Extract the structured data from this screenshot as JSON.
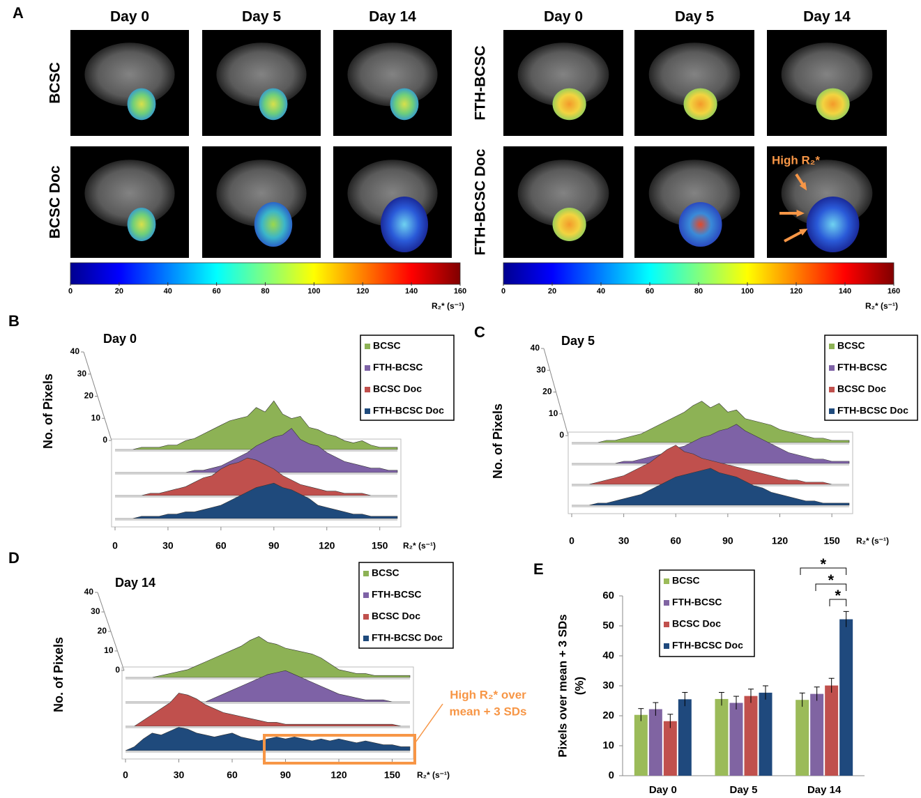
{
  "panel_a": {
    "label": "A",
    "groups": [
      {
        "columns": [
          "Day 0",
          "Day 5",
          "Day 14"
        ],
        "rows": [
          "BCSC",
          "BCSC Doc"
        ],
        "colorbar": {
          "ticks": [
            0,
            20,
            40,
            60,
            80,
            100,
            120,
            140,
            160
          ],
          "label": "R₂* (s⁻¹)"
        }
      },
      {
        "columns": [
          "Day 0",
          "Day 5",
          "Day 14"
        ],
        "rows": [
          "FTH-BCSC",
          "FTH-BCSC Doc"
        ],
        "colorbar": {
          "ticks": [
            0,
            20,
            40,
            60,
            80,
            100,
            120,
            140,
            160
          ],
          "label": "R₂* (s⁻¹)"
        }
      }
    ],
    "annotation": "High R₂*"
  },
  "chart_data": [
    {
      "type": "area3d",
      "panel": "B",
      "title": "Day 0",
      "y_label": "No. of Pixels",
      "x_label": "R₂* (s⁻¹)",
      "x": [
        0,
        5,
        10,
        15,
        20,
        25,
        30,
        35,
        40,
        45,
        50,
        55,
        60,
        65,
        70,
        75,
        80,
        85,
        90,
        95,
        100,
        105,
        110,
        115,
        120,
        125,
        130,
        135,
        140,
        145,
        150,
        155,
        160
      ],
      "xlim": [
        0,
        160
      ],
      "xticks": [
        0,
        30,
        60,
        90,
        120,
        150
      ],
      "ylim": [
        0,
        40
      ],
      "yticks": [
        0,
        10,
        20,
        30,
        40
      ],
      "series": [
        {
          "name": "BCSC",
          "color": "#8db255",
          "values": [
            0,
            0,
            0,
            1,
            1,
            1,
            2,
            2,
            4,
            5,
            7,
            9,
            11,
            13,
            14,
            15,
            19,
            17,
            22,
            16,
            14,
            15,
            10,
            9,
            7,
            6,
            4,
            3,
            4,
            2,
            1,
            1,
            1
          ]
        },
        {
          "name": "FTH-BCSC",
          "color": "#7e62a6",
          "values": [
            0,
            0,
            0,
            0,
            0,
            0,
            0,
            0,
            0,
            1,
            1,
            2,
            3,
            5,
            7,
            9,
            12,
            14,
            16,
            17,
            20,
            15,
            13,
            12,
            9,
            7,
            5,
            4,
            3,
            2,
            2,
            1,
            1
          ]
        },
        {
          "name": "BCSC Doc",
          "color": "#c0504d",
          "values": [
            0,
            0,
            0,
            0,
            1,
            1,
            2,
            3,
            4,
            6,
            8,
            9,
            12,
            14,
            15,
            17,
            16,
            14,
            12,
            9,
            7,
            5,
            4,
            3,
            2,
            2,
            1,
            1,
            1,
            0,
            0,
            0,
            0
          ]
        },
        {
          "name": "FTH-BCSC Doc",
          "color": "#1f4a7c",
          "values": [
            0,
            0,
            0,
            1,
            1,
            1,
            2,
            2,
            3,
            3,
            4,
            5,
            6,
            8,
            10,
            12,
            14,
            15,
            16,
            14,
            13,
            11,
            9,
            6,
            5,
            4,
            3,
            2,
            2,
            1,
            1,
            1,
            1
          ]
        }
      ]
    },
    {
      "type": "area3d",
      "panel": "C",
      "title": "Day 5",
      "y_label": "No. of Pixels",
      "x_label": "R₂* (s⁻¹)",
      "x": [
        0,
        5,
        10,
        15,
        20,
        25,
        30,
        35,
        40,
        45,
        50,
        55,
        60,
        65,
        70,
        75,
        80,
        85,
        90,
        95,
        100,
        105,
        110,
        115,
        120,
        125,
        130,
        135,
        140,
        145,
        150,
        155,
        160
      ],
      "xlim": [
        0,
        160
      ],
      "xticks": [
        0,
        30,
        60,
        90,
        120,
        150
      ],
      "ylim": [
        0,
        40
      ],
      "yticks": [
        0,
        10,
        20,
        30,
        40
      ],
      "series": [
        {
          "name": "BCSC",
          "color": "#8db255",
          "values": [
            0,
            0,
            0,
            0,
            1,
            1,
            2,
            3,
            4,
            6,
            8,
            10,
            12,
            14,
            17,
            19,
            16,
            18,
            14,
            15,
            11,
            10,
            9,
            8,
            6,
            5,
            4,
            3,
            2,
            2,
            1,
            1,
            1
          ]
        },
        {
          "name": "FTH-BCSC",
          "color": "#7e62a6",
          "values": [
            0,
            0,
            0,
            0,
            0,
            0,
            1,
            1,
            2,
            3,
            4,
            5,
            7,
            8,
            10,
            12,
            13,
            15,
            16,
            18,
            15,
            13,
            11,
            9,
            7,
            5,
            4,
            3,
            2,
            2,
            1,
            1,
            1
          ]
        },
        {
          "name": "BCSC Doc",
          "color": "#c0504d",
          "values": [
            0,
            0,
            0,
            1,
            2,
            3,
            4,
            6,
            8,
            10,
            13,
            16,
            18,
            15,
            14,
            12,
            11,
            10,
            9,
            8,
            7,
            6,
            5,
            4,
            3,
            2,
            2,
            1,
            1,
            1,
            0,
            0,
            0
          ]
        },
        {
          "name": "FTH-BCSC Doc",
          "color": "#1f4a7c",
          "values": [
            0,
            0,
            0,
            1,
            1,
            2,
            3,
            4,
            5,
            7,
            9,
            11,
            13,
            14,
            15,
            16,
            17,
            15,
            14,
            13,
            11,
            9,
            8,
            6,
            5,
            4,
            3,
            2,
            2,
            1,
            1,
            1,
            1
          ]
        }
      ]
    },
    {
      "type": "area3d",
      "panel": "D",
      "title": "Day 14",
      "y_label": "No. of Pixels",
      "x_label": "R₂* (s⁻¹)",
      "x": [
        0,
        5,
        10,
        15,
        20,
        25,
        30,
        35,
        40,
        45,
        50,
        55,
        60,
        65,
        70,
        75,
        80,
        85,
        90,
        95,
        100,
        105,
        110,
        115,
        120,
        125,
        130,
        135,
        140,
        145,
        150,
        155,
        160
      ],
      "xlim": [
        0,
        160
      ],
      "xticks": [
        0,
        30,
        60,
        90,
        120,
        150
      ],
      "ylim": [
        0,
        40
      ],
      "yticks": [
        0,
        10,
        20,
        30,
        40
      ],
      "annotation": [
        "High R₂* over",
        "mean + 3 SDs"
      ],
      "series": [
        {
          "name": "BCSC",
          "color": "#8db255",
          "values": [
            0,
            0,
            0,
            0,
            1,
            2,
            3,
            4,
            6,
            8,
            10,
            12,
            14,
            16,
            19,
            21,
            18,
            17,
            15,
            14,
            13,
            12,
            10,
            7,
            4,
            3,
            2,
            2,
            1,
            1,
            1,
            1,
            1
          ]
        },
        {
          "name": "FTH-BCSC",
          "color": "#7e62a6",
          "values": [
            0,
            0,
            0,
            0,
            0,
            0,
            0,
            0,
            0,
            0,
            2,
            4,
            6,
            8,
            10,
            12,
            14,
            15,
            16,
            14,
            12,
            10,
            8,
            6,
            4,
            3,
            2,
            1,
            1,
            1,
            0,
            0,
            0
          ]
        },
        {
          "name": "BCSC Doc",
          "color": "#c0504d",
          "values": [
            0,
            0,
            3,
            6,
            9,
            12,
            17,
            16,
            14,
            11,
            9,
            7,
            6,
            5,
            4,
            3,
            2,
            2,
            1,
            1,
            1,
            1,
            1,
            1,
            1,
            1,
            1,
            1,
            1,
            1,
            1,
            0,
            0
          ]
        },
        {
          "name": "FTH-BCSC Doc",
          "color": "#1f4a7c",
          "values": [
            0,
            2,
            6,
            9,
            8,
            10,
            12,
            11,
            9,
            8,
            7,
            8,
            9,
            7,
            6,
            5,
            6,
            7,
            6,
            7,
            6,
            5,
            6,
            5,
            6,
            5,
            4,
            5,
            4,
            3,
            3,
            2,
            2
          ]
        }
      ]
    },
    {
      "type": "bar",
      "panel": "E",
      "y_label": [
        "Pixels over mean + 3 SDs",
        "(%)"
      ],
      "categories": [
        "Day 0",
        "Day 5",
        "Day 14"
      ],
      "ylim": [
        0,
        60
      ],
      "yticks": [
        0,
        10,
        20,
        30,
        40,
        50,
        60
      ],
      "significance": [
        "*",
        "*",
        "*"
      ],
      "series": [
        {
          "name": "BCSC",
          "color": "#9bbb59",
          "values": [
            20.3,
            25.6,
            25.3
          ],
          "errors": [
            2.1,
            2.2,
            2.3
          ]
        },
        {
          "name": "FTH-BCSC",
          "color": "#8064a2",
          "values": [
            22.2,
            24.3,
            27.3
          ],
          "errors": [
            2.2,
            2.2,
            2.3
          ]
        },
        {
          "name": "BCSC Doc",
          "color": "#c0504d",
          "values": [
            18.2,
            26.6,
            30.1
          ],
          "errors": [
            2.3,
            2.3,
            2.4
          ]
        },
        {
          "name": "FTH-BCSC Doc",
          "color": "#1f497d",
          "values": [
            25.5,
            27.7,
            52.2
          ],
          "errors": [
            2.3,
            2.3,
            2.6
          ]
        }
      ]
    }
  ]
}
